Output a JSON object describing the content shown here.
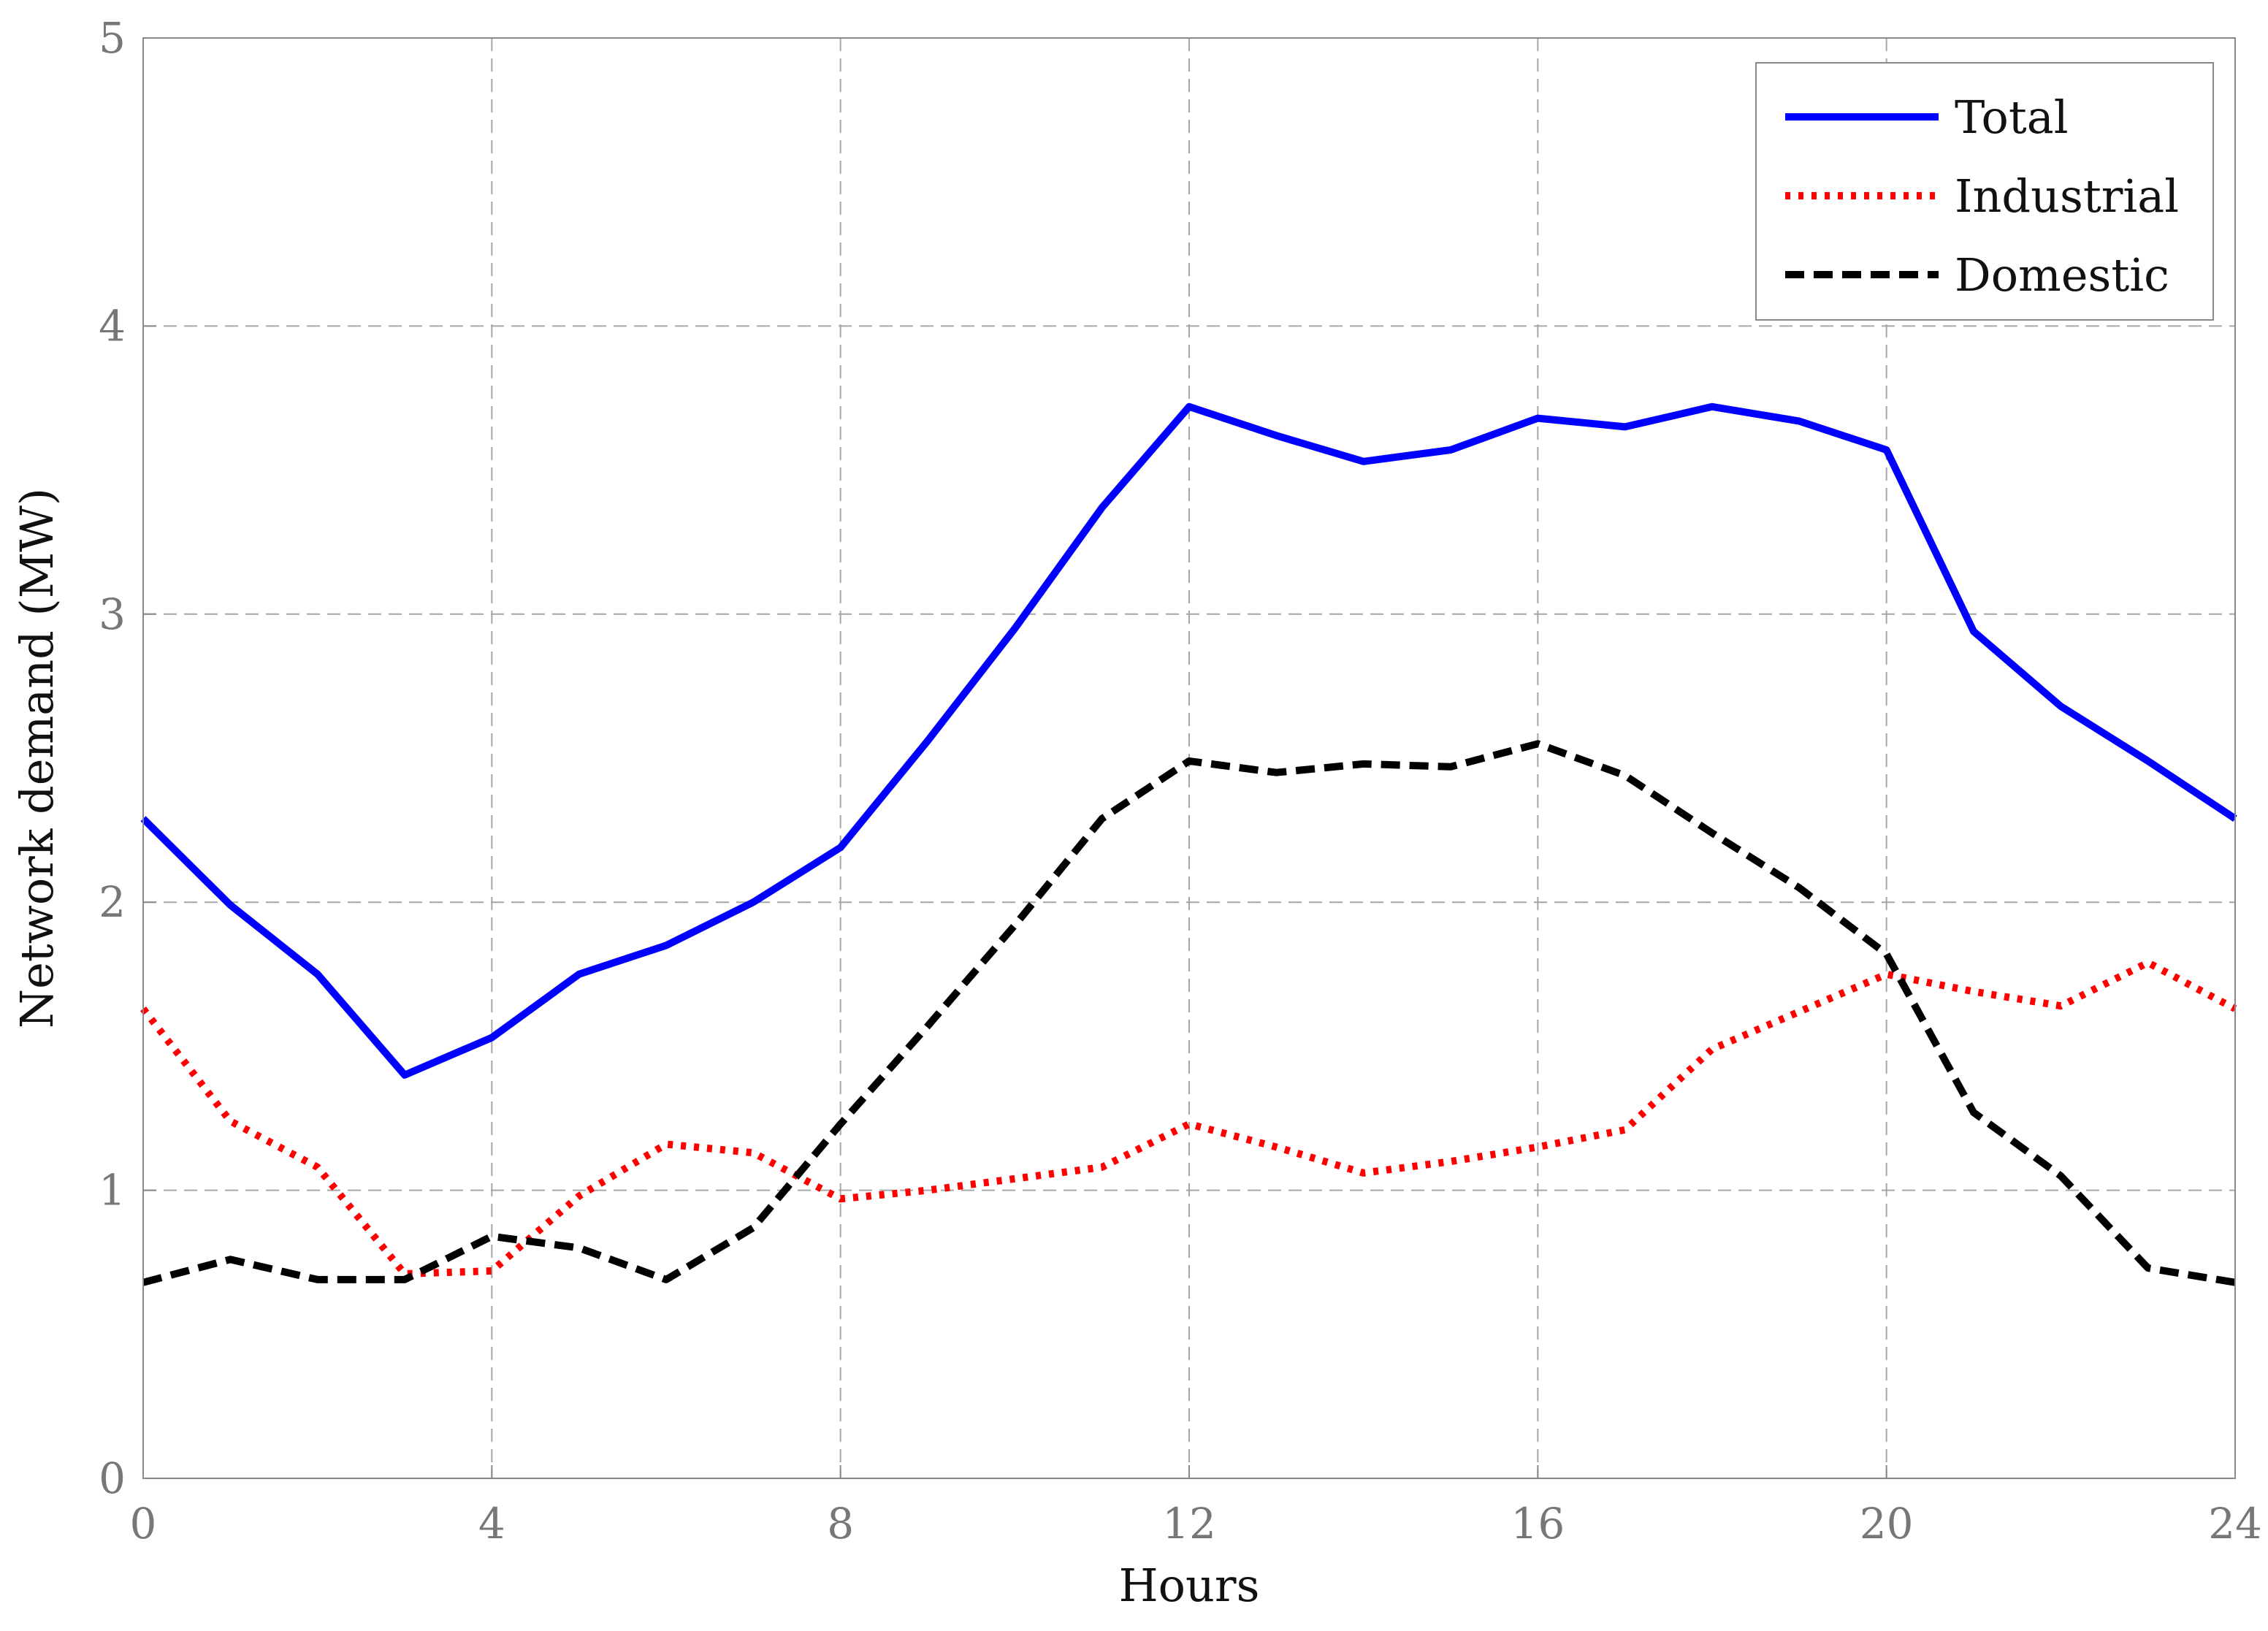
{
  "chart_data": {
    "type": "line",
    "title": "",
    "xlabel": "Hours",
    "ylabel": "Network demand (MW)",
    "xlim": [
      0,
      24
    ],
    "ylim": [
      0,
      5
    ],
    "xticks": [
      0,
      4,
      8,
      12,
      16,
      20,
      24
    ],
    "yticks": [
      0,
      1,
      2,
      3,
      4,
      5
    ],
    "grid": true,
    "legend_position": "top-right",
    "x": [
      0,
      1,
      2,
      3,
      4,
      5,
      6,
      7,
      8,
      9,
      10,
      11,
      12,
      13,
      14,
      15,
      16,
      17,
      18,
      19,
      20,
      21,
      22,
      23,
      24
    ],
    "series": [
      {
        "name": "Total",
        "color": "#0000ff",
        "style": "solid",
        "values": [
          2.29,
          1.99,
          1.75,
          1.4,
          1.53,
          1.75,
          1.85,
          2.0,
          2.19,
          2.56,
          2.95,
          3.37,
          3.72,
          3.62,
          3.53,
          3.57,
          3.68,
          3.65,
          3.72,
          3.67,
          3.57,
          2.94,
          2.68,
          2.49,
          2.29
        ]
      },
      {
        "name": "Industrial",
        "color": "#ff0000",
        "style": "dotted",
        "values": [
          1.63,
          1.24,
          1.08,
          0.71,
          0.72,
          0.98,
          1.16,
          1.13,
          0.97,
          1.0,
          1.04,
          1.08,
          1.23,
          1.15,
          1.06,
          1.1,
          1.15,
          1.21,
          1.49,
          1.62,
          1.75,
          1.69,
          1.64,
          1.79,
          1.63
        ]
      },
      {
        "name": "Domestic",
        "color": "#000000",
        "style": "dashed",
        "values": [
          0.68,
          0.76,
          0.69,
          0.69,
          0.84,
          0.8,
          0.69,
          0.87,
          1.23,
          1.57,
          1.92,
          2.29,
          2.49,
          2.45,
          2.48,
          2.47,
          2.55,
          2.44,
          2.24,
          2.05,
          1.82,
          1.27,
          1.05,
          0.73,
          0.68
        ]
      }
    ]
  }
}
